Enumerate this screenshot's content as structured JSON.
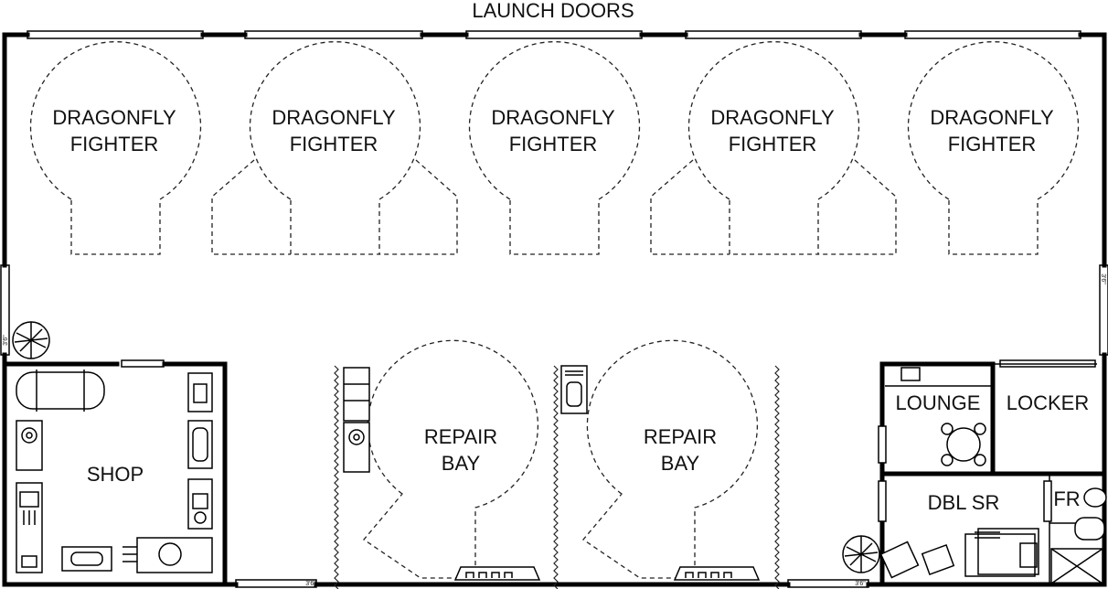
{
  "plan": {
    "top_label": "LAUNCH DOORS",
    "fighter_line1": "DRAGONFLY",
    "fighter_line2": "FIGHTER",
    "repair_line1": "REPAIR",
    "repair_line2": "BAY",
    "rooms": {
      "shop": "SHOP",
      "lounge": "LOUNGE",
      "locker": "LOCKER",
      "dbl_sr": "DBL SR",
      "fr": "FR"
    },
    "door_width_mark": "3'6\""
  }
}
